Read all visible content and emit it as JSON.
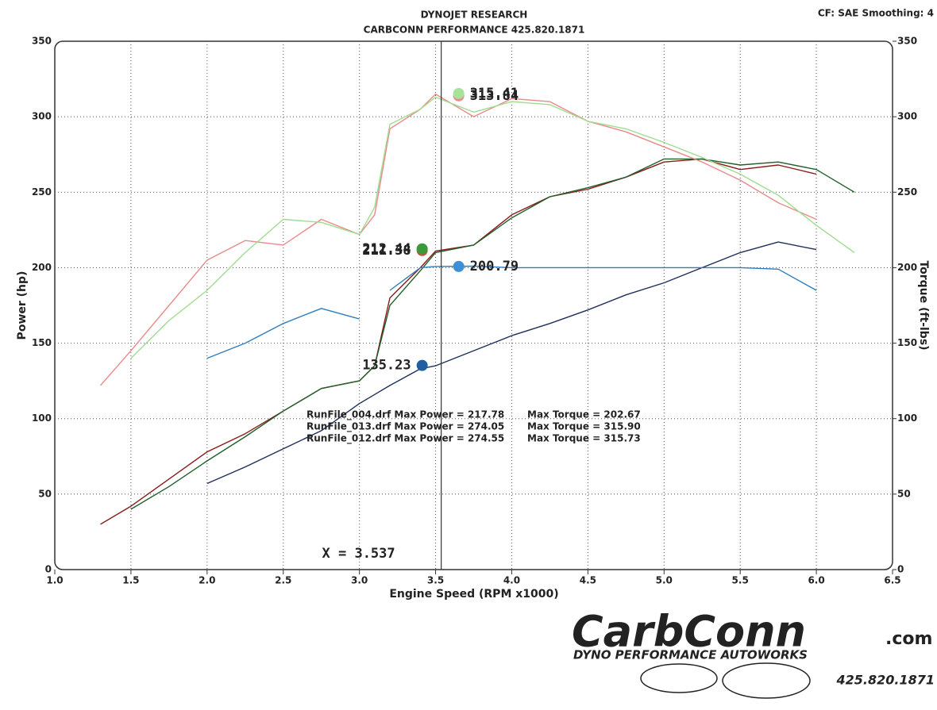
{
  "chart_data": {
    "type": "line",
    "title": "DYNOJET RESEARCH",
    "subtitle": "CARBCONN PERFORMANCE 425.820.1871",
    "settings": "CF: SAE  Smoothing: 4",
    "x_label": "Engine Speed (RPM x1000)",
    "y_label": "Power (hp)",
    "y2_label": "Torque (ft-lbs)",
    "x": [
      1.3,
      1.5,
      1.75,
      2.0,
      2.25,
      2.5,
      2.75,
      3.0,
      3.1,
      3.2,
      3.4,
      3.5,
      3.75,
      4.0,
      4.25,
      4.5,
      4.75,
      5.0,
      5.25,
      5.5,
      5.75,
      6.0,
      6.25
    ],
    "xlim": [
      1,
      6.5
    ],
    "xticks": [
      {
        "value": 1,
        "label": "1.0"
      },
      1.5,
      {
        "value": 2,
        "label": "2.0"
      },
      2.5,
      {
        "value": 3,
        "label": "3.0"
      },
      3.5,
      {
        "value": 4,
        "label": "4.0"
      },
      4.5,
      {
        "value": 5,
        "label": "5.0"
      },
      5.5,
      {
        "value": 6,
        "label": "6.0"
      },
      6.5
    ],
    "ylim": [
      0,
      350
    ],
    "yticks": [
      0,
      50,
      100,
      150,
      200,
      250,
      300,
      350
    ],
    "y2lim": [
      0,
      350
    ],
    "y2ticks": [
      0,
      50,
      100,
      150,
      200,
      250,
      300,
      350
    ],
    "grid": true,
    "series": [
      {
        "name": "RunFile_012.drf Power",
        "color": "#8b1a1a",
        "marker_color": "#d94545",
        "cursor_value": 211.38,
        "axis": "y",
        "values": [
          30,
          42,
          60,
          78,
          90,
          105,
          120,
          125,
          135,
          180,
          200,
          211,
          215,
          235,
          247,
          252,
          260,
          270,
          272,
          265,
          268,
          262,
          null
        ]
      },
      {
        "name": "RunFile_013.drf Power",
        "color": "#1f5f2a",
        "marker_color": "#3a9a3a",
        "cursor_value": 212.44,
        "axis": "y",
        "values": [
          null,
          40,
          55,
          72,
          88,
          105,
          120,
          125,
          135,
          175,
          198,
          210,
          215,
          233,
          247,
          253,
          260,
          272,
          272,
          268,
          270,
          265,
          250
        ]
      },
      {
        "name": "RunFile_004.drf Power",
        "color": "#1d2f5a",
        "marker_color": "#1f5f9f",
        "cursor_value": 135.23,
        "axis": "y",
        "values": [
          null,
          null,
          null,
          57,
          68,
          80,
          92,
          110,
          116,
          122,
          133,
          135,
          145,
          155,
          163,
          172,
          182,
          190,
          200,
          210,
          217,
          212,
          null
        ]
      },
      {
        "name": "RunFile_012.drf Torque",
        "color": "#e88a8a",
        "marker_color": "#ee8c8c",
        "cursor_value": 313.84,
        "axis": "y2",
        "values": [
          122,
          145,
          175,
          205,
          218,
          215,
          232,
          222,
          235,
          292,
          305,
          315,
          300,
          312,
          310,
          297,
          290,
          280,
          270,
          258,
          243,
          232,
          null
        ]
      },
      {
        "name": "RunFile_013.drf Torque",
        "color": "#9fdc8f",
        "marker_color": "#a8e39a",
        "cursor_value": 315.41,
        "axis": "y2",
        "values": [
          null,
          140,
          165,
          185,
          210,
          232,
          230,
          222,
          240,
          295,
          305,
          313,
          303,
          310,
          308,
          297,
          292,
          283,
          273,
          262,
          248,
          228,
          210
        ]
      },
      {
        "name": "RunFile_004.drf Torque",
        "color": "#2f7dbf",
        "marker_color": "#3d8fd6",
        "cursor_value": 200.79,
        "axis": "y2",
        "values": [
          null,
          null,
          null,
          140,
          150,
          163,
          173,
          166,
          null,
          185,
          200,
          200.8,
          201,
          200,
          200,
          200,
          200,
          200,
          200,
          200,
          199,
          185,
          null
        ]
      }
    ],
    "cursor": {
      "value": 3.537,
      "label": "X = 3.537"
    },
    "summary": [
      {
        "power": "RunFile_004.drf Max Power = 217.78",
        "torque": "Max Torque = 202.67"
      },
      {
        "power": "RunFile_013.drf Max Power = 274.05",
        "torque": "Max Torque = 315.90"
      },
      {
        "power": "RunFile_012.drf Max Power = 274.55",
        "torque": "Max Torque = 315.73"
      }
    ]
  },
  "logo": {
    "name": "CarbConn",
    "domain": ".com",
    "tagline": "DYNO PERFORMANCE AUTOWORKS",
    "phone": "425.820.1871"
  }
}
